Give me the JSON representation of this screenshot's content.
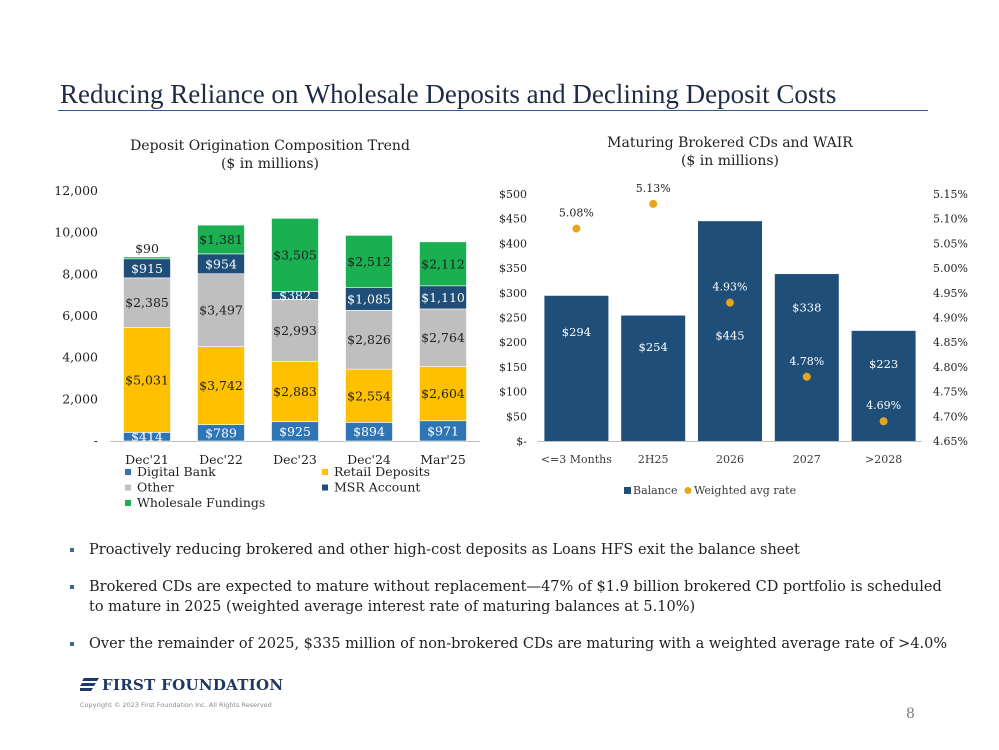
{
  "page": {
    "title": "Reducing Reliance on Wholesale Deposits and Declining Deposit Costs",
    "page_number": "8"
  },
  "footer": {
    "logo_text": "FIRST FOUNDATION",
    "copyright": "Copyright © 2023 First Foundation Inc. All Rights Reserved"
  },
  "bullets": [
    "Proactively reducing brokered and other high-cost deposits as Loans HFS exit the balance sheet",
    "Brokered CDs are expected to mature without replacement—47% of $1.9 billion brokered CD portfolio is scheduled to mature in 2025 (weighted average interest rate of maturing balances at 5.10%)",
    "Over the remainder of 2025, $335 million of non-brokered CDs are maturing with a weighted average rate of >4.0%"
  ],
  "colors": {
    "digital_bank": "#2e75b6",
    "retail_deposits": "#ffc000",
    "other": "#bfbfbf",
    "msr_account": "#1f4e79",
    "wholesale_fundings": "#1aaf50",
    "balance": "#1f4e79",
    "rate": "#e6a51c"
  },
  "chart_data": [
    {
      "type": "bar",
      "stacked": true,
      "title": "Deposit Origination Composition Trend",
      "subtitle": "($ in millions)",
      "categories": [
        "Dec'21",
        "Dec'22",
        "Dec'23",
        "Dec'24",
        "Mar'25"
      ],
      "ylim": [
        0,
        12000
      ],
      "yticks": [
        0,
        2000,
        4000,
        6000,
        8000,
        10000,
        12000
      ],
      "ytick_labels": [
        "-",
        "2,000",
        "4,000",
        "6,000",
        "8,000",
        "10,000",
        "12,000"
      ],
      "series": [
        {
          "name": "Digital Bank",
          "key": "digital_bank",
          "values": [
            414,
            789,
            925,
            894,
            971
          ],
          "labels": [
            "$414",
            "$789",
            "$925",
            "$894",
            "$971"
          ]
        },
        {
          "name": "Retail Deposits",
          "key": "retail_deposits",
          "values": [
            5031,
            3742,
            2883,
            2554,
            2604
          ],
          "labels": [
            "$5,031",
            "$3,742",
            "$2,883",
            "$2,554",
            "$2,604"
          ]
        },
        {
          "name": "Other",
          "key": "other",
          "values": [
            2385,
            3497,
            2993,
            2826,
            2764
          ],
          "labels": [
            "$2,385",
            "$3,497",
            "$2,993",
            "$2,826",
            "$2,764"
          ]
        },
        {
          "name": "MSR Account",
          "key": "msr_account",
          "values": [
            915,
            954,
            382,
            1085,
            1110
          ],
          "labels": [
            "$915",
            "$954",
            "$382",
            "$1,085",
            "$1,110"
          ]
        },
        {
          "name": "Wholesale Fundings",
          "key": "wholesale_fundings",
          "values": [
            90,
            1381,
            3505,
            2512,
            2112
          ],
          "labels": [
            "$90",
            "$1,381",
            "$3,505",
            "$2,512",
            "$2,112"
          ]
        }
      ],
      "legend": [
        {
          "name": "Digital Bank",
          "key": "digital_bank"
        },
        {
          "name": "Retail Deposits",
          "key": "retail_deposits"
        },
        {
          "name": "Other",
          "key": "other"
        },
        {
          "name": "MSR Account",
          "key": "msr_account"
        },
        {
          "name": "Wholesale Fundings",
          "key": "wholesale_fundings"
        }
      ]
    },
    {
      "type": "bar",
      "title": "Maturing Brokered CDs and WAIR",
      "subtitle": "($ in millions)",
      "categories": [
        "<=3 Months",
        "2H25",
        "2026",
        "2027",
        ">2028"
      ],
      "ylim": [
        0,
        500
      ],
      "yticks": [
        0,
        50,
        100,
        150,
        200,
        250,
        300,
        350,
        400,
        450,
        500
      ],
      "ytick_labels": [
        "$-",
        "$50",
        "$100",
        "$150",
        "$200",
        "$250",
        "$300",
        "$350",
        "$400",
        "$450",
        "$500"
      ],
      "y2lim": [
        4.65,
        5.15
      ],
      "y2ticks": [
        4.65,
        4.7,
        4.75,
        4.8,
        4.85,
        4.9,
        4.95,
        5.0,
        5.05,
        5.1,
        5.15
      ],
      "y2tick_labels": [
        "4.65%",
        "4.70%",
        "4.75%",
        "4.80%",
        "4.85%",
        "4.90%",
        "4.95%",
        "5.00%",
        "5.05%",
        "5.10%",
        "5.15%"
      ],
      "series": [
        {
          "name": "Balance",
          "key": "balance",
          "values": [
            294,
            254,
            445,
            338,
            223
          ],
          "labels": [
            "$294",
            "$254",
            "$445",
            "$338",
            "$223"
          ]
        },
        {
          "name": "Weighted avg rate",
          "key": "rate",
          "axis": "secondary",
          "values": [
            5.08,
            5.13,
            4.93,
            4.78,
            4.69
          ],
          "labels": [
            "5.08%",
            "5.13%",
            "4.93%",
            "4.78%",
            "4.69%"
          ]
        }
      ],
      "legend": [
        {
          "name": "Balance",
          "key": "balance"
        },
        {
          "name": "Weighted avg rate",
          "key": "rate"
        }
      ]
    }
  ]
}
